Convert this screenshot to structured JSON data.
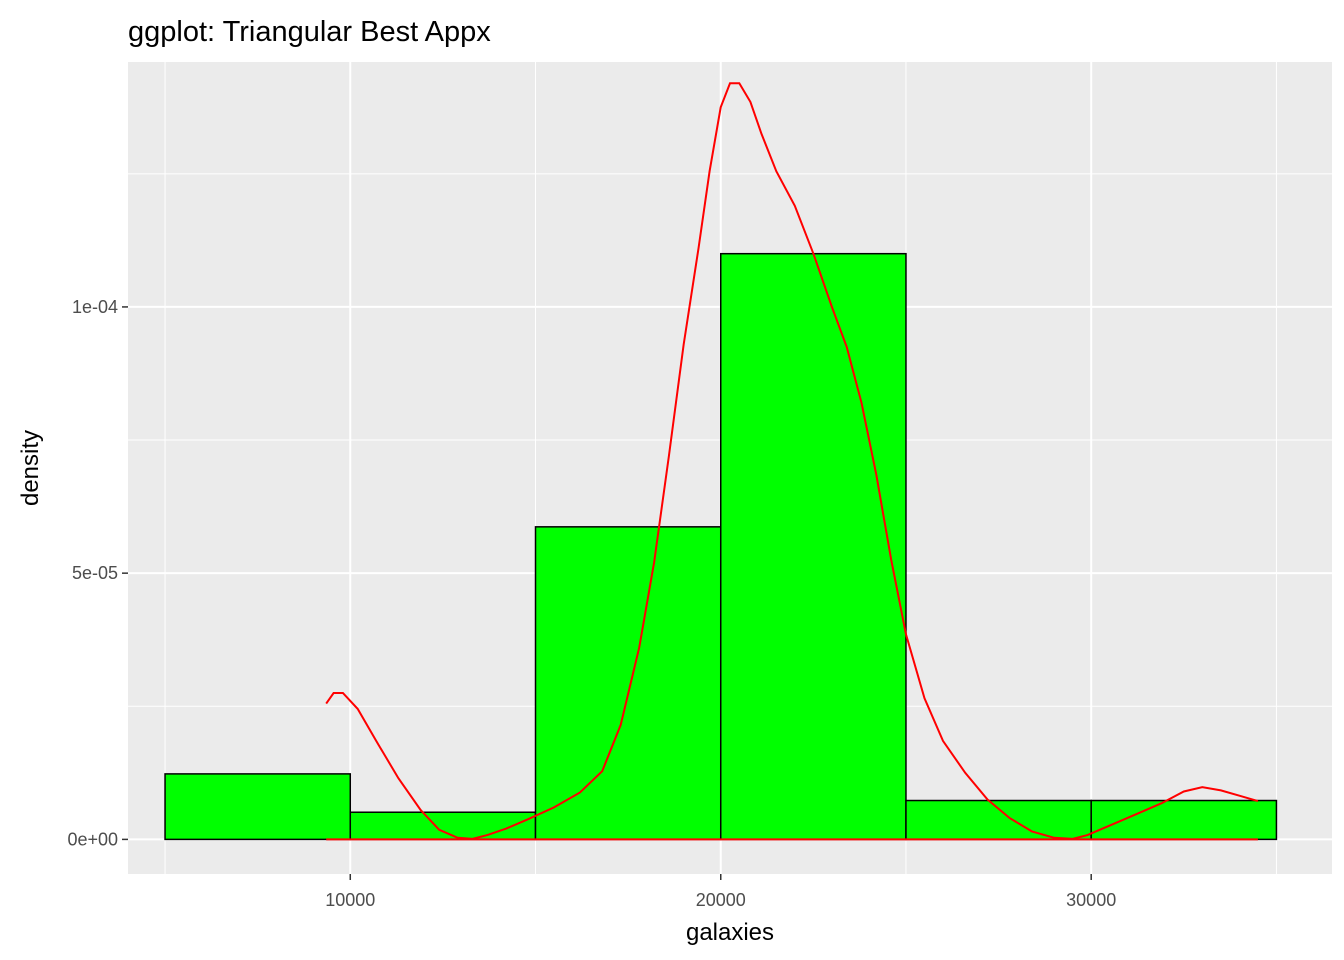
{
  "chart_data": {
    "type": "bar",
    "title": "ggplot: Triangular Best Appx",
    "xlabel": "galaxies",
    "ylabel": "density",
    "xlim": [
      4000,
      36500
    ],
    "ylim": [
      -6.5e-06,
      0.000146
    ],
    "x_ticks": [
      10000,
      20000,
      30000
    ],
    "x_tick_labels": [
      "10000",
      "20000",
      "30000"
    ],
    "y_ticks": [
      0,
      5e-05,
      0.0001
    ],
    "y_tick_labels": [
      "0e+00",
      "5e-05",
      "1e-04"
    ],
    "grid": true,
    "bins": [
      {
        "x0": 5000,
        "x1": 10000,
        "density": 1.23e-05
      },
      {
        "x0": 10000,
        "x1": 15000,
        "density": 5.1e-06
      },
      {
        "x0": 15000,
        "x1": 20000,
        "density": 5.87e-05
      },
      {
        "x0": 20000,
        "x1": 25000,
        "density": 0.00011
      },
      {
        "x0": 25000,
        "x1": 30000,
        "density": 7.3e-06
      },
      {
        "x0": 30000,
        "x1": 35000,
        "density": 7.3e-06
      }
    ],
    "bar_fill": "#00ff00",
    "bar_stroke": "#000000",
    "density_curve": {
      "color": "#ff0000",
      "x": [
        9350,
        9550,
        9800,
        10200,
        10700,
        11300,
        11900,
        12400,
        12900,
        13300,
        13700,
        14200,
        14800,
        15500,
        16200,
        16800,
        17300,
        17800,
        18200,
        18600,
        19000,
        19400,
        19700,
        20000,
        20250,
        20500,
        20800,
        21100,
        21500,
        22000,
        22500,
        23000,
        23400,
        23800,
        24200,
        24600,
        25000,
        25500,
        26000,
        26600,
        27200,
        27800,
        28400,
        29000,
        29500,
        29900,
        30300,
        30800,
        31300,
        31900,
        32500,
        33000,
        33500,
        34000,
        34500
      ],
      "y": [
        2.55e-05,
        2.75e-05,
        2.75e-05,
        2.45e-05,
        1.85e-05,
        1.15e-05,
        5.5e-06,
        1.8e-06,
        3e-07,
        1e-07,
        8e-07,
        2e-06,
        3.8e-06,
        6e-06,
        8.8e-06,
        1.28e-05,
        2.15e-05,
        3.6e-05,
        5.2e-05,
        7.2e-05,
        9.3e-05,
        0.000111,
        0.0001255,
        0.0001375,
        0.000142,
        0.000142,
        0.0001385,
        0.0001325,
        0.0001255,
        0.000119,
        0.00011,
        0.0001,
        9.25e-05,
        8.2e-05,
        6.85e-05,
        5.25e-05,
        3.85e-05,
        2.65e-05,
        1.85e-05,
        1.25e-05,
        7.5e-06,
        4e-06,
        1.5e-06,
        3e-07,
        1e-07,
        8e-07,
        2e-06,
        3.5e-06,
        5e-06,
        6.8e-06,
        9e-06,
        9.8e-06,
        9.2e-06,
        8.2e-06,
        7.2e-06
      ]
    }
  }
}
